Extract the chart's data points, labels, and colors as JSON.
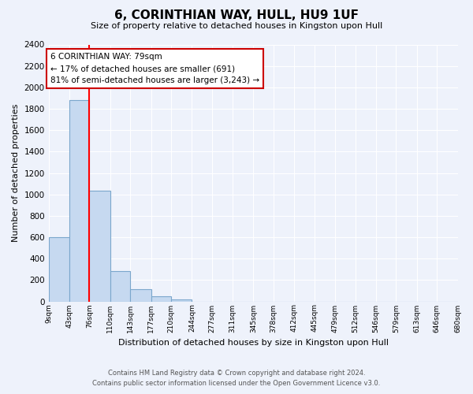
{
  "title": "6, CORINTHIAN WAY, HULL, HU9 1UF",
  "subtitle": "Size of property relative to detached houses in Kingston upon Hull",
  "xlabel": "Distribution of detached houses by size in Kingston upon Hull",
  "ylabel": "Number of detached properties",
  "bin_edges": [
    9,
    43,
    76,
    110,
    143,
    177,
    210,
    244,
    277,
    311,
    345,
    378,
    412,
    445,
    479,
    512,
    546,
    579,
    613,
    646,
    680
  ],
  "bin_labels": [
    "9sqm",
    "43sqm",
    "76sqm",
    "110sqm",
    "143sqm",
    "177sqm",
    "210sqm",
    "244sqm",
    "277sqm",
    "311sqm",
    "345sqm",
    "378sqm",
    "412sqm",
    "445sqm",
    "479sqm",
    "512sqm",
    "546sqm",
    "579sqm",
    "613sqm",
    "646sqm",
    "680sqm"
  ],
  "counts": [
    600,
    1880,
    1035,
    280,
    115,
    50,
    20,
    0,
    0,
    0,
    0,
    0,
    0,
    0,
    0,
    0,
    0,
    0,
    0,
    0
  ],
  "bar_color": "#c6d9f0",
  "bar_edge_color": "#7ba7cc",
  "property_line_x": 76,
  "property_line_color": "red",
  "annotation_title": "6 CORINTHIAN WAY: 79sqm",
  "annotation_line1": "← 17% of detached houses are smaller (691)",
  "annotation_line2": "81% of semi-detached houses are larger (3,243) →",
  "annotation_box_color": "white",
  "annotation_box_edge": "#cc0000",
  "ylim": [
    0,
    2400
  ],
  "yticks": [
    0,
    200,
    400,
    600,
    800,
    1000,
    1200,
    1400,
    1600,
    1800,
    2000,
    2200,
    2400
  ],
  "footer_line1": "Contains HM Land Registry data © Crown copyright and database right 2024.",
  "footer_line2": "Contains public sector information licensed under the Open Government Licence v3.0.",
  "background_color": "#eef2fb"
}
